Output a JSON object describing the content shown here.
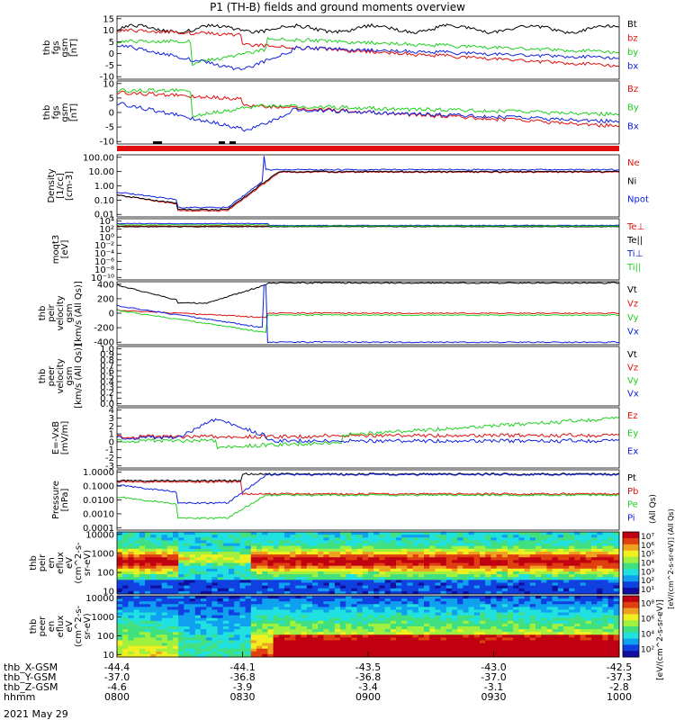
{
  "title": "P1 (TH-B) fields and ground moments overview",
  "date": "2021 May 29",
  "colors": {
    "black": "#000000",
    "red": "#e01010",
    "green": "#20d020",
    "blue": "#1020e0"
  },
  "xaxis": {
    "time_ticks": [
      "0800",
      "0830",
      "0900",
      "0930",
      "1000"
    ],
    "ephem": [
      {
        "label": "thb_X-GSM",
        "values": [
          "-44.4",
          "-44.1",
          "-43.5",
          "-43.0",
          "-42.5"
        ]
      },
      {
        "label": "thb_Y-GSM",
        "values": [
          "-37.0",
          "-36.8",
          "-36.8",
          "-37.0",
          "-37.3"
        ]
      },
      {
        "label": "thb_Z-GSM",
        "values": [
          "-4.6",
          "-3.9",
          "-3.4",
          "-3.1",
          "-2.8"
        ]
      },
      {
        "label": "hhmm",
        "values": []
      }
    ]
  },
  "chart_data": [
    {
      "type": "line",
      "panel": "fgs_gsm",
      "ylabel": [
        "thb",
        "fgs",
        "gsm",
        "[nT]"
      ],
      "yticks": [
        "15",
        "10",
        "5",
        "0",
        "-5",
        "-10"
      ],
      "ylim": [
        -12,
        16
      ],
      "series": [
        {
          "name": "Bt",
          "color": "#000000"
        },
        {
          "name": "bz",
          "color": "#e01010"
        },
        {
          "name": "by",
          "color": "#20d020"
        },
        {
          "name": "bx",
          "color": "#1020e0"
        }
      ]
    },
    {
      "type": "line",
      "panel": "fgs_gsm_2",
      "ylabel": [
        "thb",
        "fgs",
        "gsm",
        "[nT]"
      ],
      "yticks": [
        "10",
        "5",
        "0",
        "-5",
        "-10"
      ],
      "ylim": [
        -13,
        13
      ],
      "series": [
        {
          "name": "Bz",
          "color": "#e01010"
        },
        {
          "name": "By",
          "color": "#20d020"
        },
        {
          "name": "Bx",
          "color": "#1020e0"
        }
      ]
    },
    {
      "type": "line",
      "panel": "density",
      "ylabel": [
        "Density",
        "[1/cc]",
        "[cm-3]"
      ],
      "yticks": [
        "100.00",
        "10.00",
        "1.00",
        "0.10",
        "0.01"
      ],
      "log": true,
      "series": [
        {
          "name": "Ne",
          "color": "#e01010"
        },
        {
          "name": "Ni",
          "color": "#000000"
        },
        {
          "name": "Npot",
          "color": "#1020e0"
        }
      ]
    },
    {
      "type": "line",
      "panel": "temperature",
      "ylabel": [
        "moqt3",
        "[eV]"
      ],
      "yticks": [
        "10⁴",
        "10²",
        "10⁰",
        "10⁻²",
        "10⁻⁴",
        "10⁻⁶",
        "10⁻⁸",
        "10⁻¹⁰"
      ],
      "log": true,
      "series": [
        {
          "name": "Te⊥",
          "color": "#e01010"
        },
        {
          "name": "Te||",
          "color": "#000000"
        },
        {
          "name": "Ti⊥",
          "color": "#1020e0"
        },
        {
          "name": "Ti||",
          "color": "#20d020"
        }
      ]
    },
    {
      "type": "line",
      "panel": "peir_velocity",
      "ylabel": [
        "thb",
        "peir",
        "velocity",
        "gsm",
        "[km/s (All Qs)]"
      ],
      "yticks": [
        "400",
        "200",
        "0",
        "-200",
        "-400"
      ],
      "ylim": [
        -420,
        420
      ],
      "series": [
        {
          "name": "Vt",
          "color": "#000000"
        },
        {
          "name": "Vz",
          "color": "#e01010"
        },
        {
          "name": "Vy",
          "color": "#20d020"
        },
        {
          "name": "Vx",
          "color": "#1020e0"
        }
      ]
    },
    {
      "type": "line",
      "panel": "peer_velocity",
      "ylabel": [
        "thb",
        "peer",
        "velocity",
        "gsm",
        "[km/s (All Qs)]"
      ],
      "yticks": [
        "1.0",
        "0.9",
        "0.8",
        "0.7",
        "0.6",
        "0.5",
        "0.4",
        "0.3",
        "0.2",
        "0.1",
        "0.0"
      ],
      "ylim": [
        0,
        1
      ],
      "series": [
        {
          "name": "Vt",
          "color": "#000000"
        },
        {
          "name": "Vz",
          "color": "#e01010"
        },
        {
          "name": "Vy",
          "color": "#20d020"
        },
        {
          "name": "Vx",
          "color": "#1020e0"
        }
      ]
    },
    {
      "type": "line",
      "panel": "e_field",
      "ylabel": [
        "E=-VxB",
        "[mV/m]"
      ],
      "yticks": [
        "4",
        "3",
        "2",
        "1",
        "0",
        "-1",
        "-2",
        "-3"
      ],
      "ylim": [
        -3.5,
        4.2
      ],
      "series": [
        {
          "name": "Ez",
          "color": "#e01010"
        },
        {
          "name": "Ey",
          "color": "#20d020"
        },
        {
          "name": "Ex",
          "color": "#1020e0"
        }
      ]
    },
    {
      "type": "line",
      "panel": "pressure",
      "ylabel": [
        "Pressure",
        "[nPa]"
      ],
      "yticks": [
        "1.0000",
        "0.1000",
        "0.0100",
        "0.0010",
        "0.0001"
      ],
      "log": true,
      "series": [
        {
          "name": "Pt",
          "color": "#000000"
        },
        {
          "name": "Pb",
          "color": "#e01010"
        },
        {
          "name": "Pe",
          "color": "#20d020"
        },
        {
          "name": "Pi",
          "color": "#1020e0"
        }
      ],
      "right_label": "(All Qs)"
    },
    {
      "type": "heatmap",
      "panel": "peir_spectrogram",
      "ylabel": [
        "thb",
        "peir",
        "en",
        "eflux",
        "eV",
        "(cm^2-s-",
        "sr-eV)"
      ],
      "yticks": [
        "10000",
        "1000",
        "100",
        "10"
      ],
      "colorbar": {
        "ticks": [
          "10⁷",
          "10⁶",
          "10⁵",
          "10⁴",
          "10³",
          "10²",
          "10¹"
        ],
        "label": "[eV/(cm^2-s-sr-eV)]",
        "extra": "[eV/(cm^2-s-sr-eV)] (All Qs)"
      }
    },
    {
      "type": "heatmap",
      "panel": "peer_spectrogram",
      "ylabel": [
        "thb",
        "peer",
        "en",
        "eflux",
        "eV",
        "(cm^2-s-",
        "sr-eV)"
      ],
      "yticks": [
        "10000",
        "1000",
        "100",
        "10"
      ],
      "colorbar": {
        "ticks": [
          "10⁸",
          "10⁶",
          "10⁴",
          "10²"
        ],
        "label": ""
      }
    }
  ]
}
